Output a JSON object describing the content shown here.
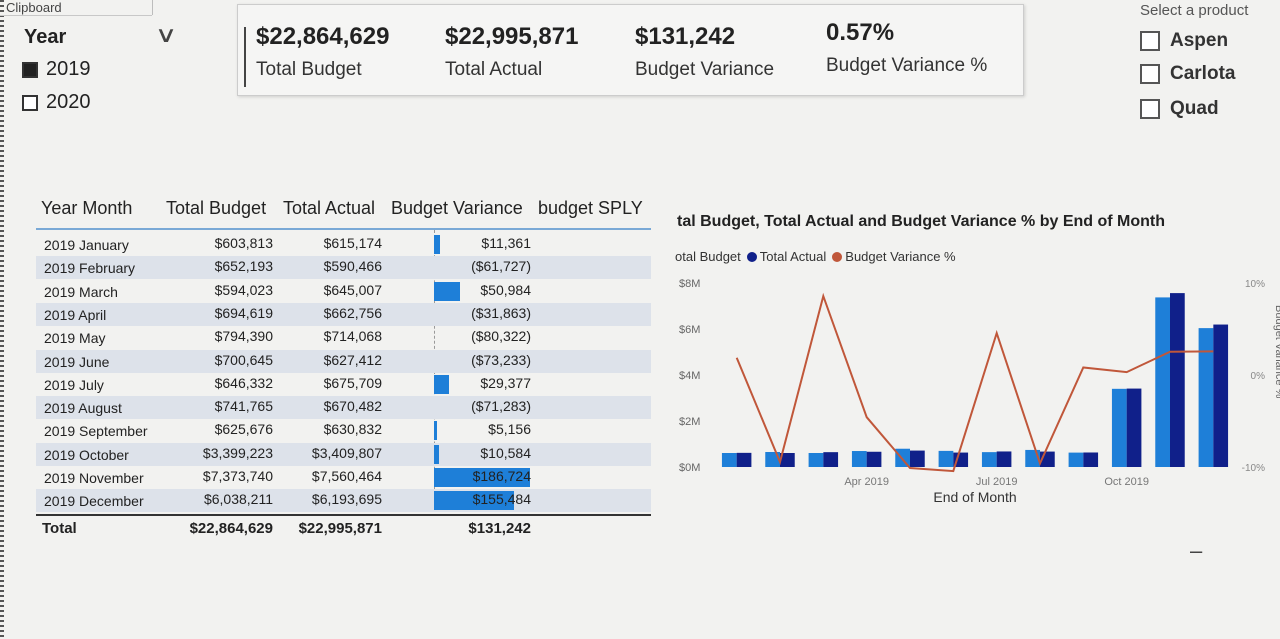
{
  "ribbon": {
    "clipboard": "Clipboard"
  },
  "year_slicer": {
    "title": "Year",
    "options": [
      {
        "label": "2019",
        "checked": true
      },
      {
        "label": "2020",
        "checked": false
      }
    ]
  },
  "kpis": [
    {
      "value": "$22,864,629",
      "label": "Total Budget"
    },
    {
      "value": "$22,995,871",
      "label": "Total Actual"
    },
    {
      "value": "$131,242",
      "label": "Budget Variance"
    },
    {
      "value": "0.57%",
      "label": "Budget Variance %"
    }
  ],
  "product_slicer": {
    "title": "Select a product",
    "options": [
      {
        "label": "Aspen",
        "checked": false
      },
      {
        "label": "Carlota",
        "checked": false
      },
      {
        "label": "Quad",
        "checked": false
      }
    ]
  },
  "table": {
    "headers": {
      "year_month": "Year  Month",
      "budget": "Total Budget",
      "actual": "Total Actual",
      "variance": "Budget Variance",
      "sply": "budget SPLY"
    },
    "rows": [
      {
        "month": "2019  January",
        "budget": "$603,813",
        "actual": "$615,174",
        "variance": "$11,361",
        "var_num": 11361
      },
      {
        "month": "2019  February",
        "budget": "$652,193",
        "actual": "$590,466",
        "variance": "($61,727)",
        "var_num": -61727
      },
      {
        "month": "2019  March",
        "budget": "$594,023",
        "actual": "$645,007",
        "variance": "$50,984",
        "var_num": 50984
      },
      {
        "month": "2019  April",
        "budget": "$694,619",
        "actual": "$662,756",
        "variance": "($31,863)",
        "var_num": -31863
      },
      {
        "month": "2019  May",
        "budget": "$794,390",
        "actual": "$714,068",
        "variance": "($80,322)",
        "var_num": -80322
      },
      {
        "month": "2019  June",
        "budget": "$700,645",
        "actual": "$627,412",
        "variance": "($73,233)",
        "var_num": -73233
      },
      {
        "month": "2019  July",
        "budget": "$646,332",
        "actual": "$675,709",
        "variance": "$29,377",
        "var_num": 29377
      },
      {
        "month": "2019  August",
        "budget": "$741,765",
        "actual": "$670,482",
        "variance": "($71,283)",
        "var_num": -71283
      },
      {
        "month": "2019  September",
        "budget": "$625,676",
        "actual": "$630,832",
        "variance": "$5,156",
        "var_num": 5156
      },
      {
        "month": "2019  October",
        "budget": "$3,399,223",
        "actual": "$3,409,807",
        "variance": "$10,584",
        "var_num": 10584
      },
      {
        "month": "2019  November",
        "budget": "$7,373,740",
        "actual": "$7,560,464",
        "variance": "$186,724",
        "var_num": 186724
      },
      {
        "month": "2019  December",
        "budget": "$6,038,211",
        "actual": "$6,193,695",
        "variance": "$155,484",
        "var_num": 155484
      }
    ],
    "total": {
      "label": "Total",
      "budget": "$22,864,629",
      "actual": "$22,995,871",
      "variance": "$131,242"
    }
  },
  "chart_data": {
    "type": "bar",
    "title": "tal Budget, Total Actual and Budget Variance % by End of Month",
    "xlabel": "End of Month",
    "ylabel_right": "Budget Variance %",
    "ylim": [
      0,
      8000000
    ],
    "y2lim": [
      -10,
      10
    ],
    "y_ticks": [
      "$0M",
      "$2M",
      "$4M",
      "$6M",
      "$8M"
    ],
    "y2_ticks": [
      "-10%",
      "0%",
      "10%"
    ],
    "x_ticks": [
      "Apr 2019",
      "Jul 2019",
      "Oct 2019"
    ],
    "legend": [
      "otal Budget",
      "Total Actual",
      "Budget Variance %"
    ],
    "colors": {
      "budget": "#1e7fd8",
      "actual": "#10208a",
      "variance": "#c0573a"
    },
    "categories": [
      "Jan 2019",
      "Feb 2019",
      "Mar 2019",
      "Apr 2019",
      "May 2019",
      "Jun 2019",
      "Jul 2019",
      "Aug 2019",
      "Sep 2019",
      "Oct 2019",
      "Nov 2019",
      "Dec 2019"
    ],
    "series": [
      {
        "name": "Total Budget",
        "values": [
          603813,
          652193,
          594023,
          694619,
          794390,
          700645,
          646332,
          741765,
          625676,
          3399223,
          7373740,
          6038211
        ]
      },
      {
        "name": "Total Actual",
        "values": [
          615174,
          590466,
          645007,
          662756,
          714068,
          627412,
          675709,
          670482,
          630832,
          3409807,
          7560464,
          6193695
        ]
      },
      {
        "name": "Budget Variance %",
        "axis": "right",
        "values": [
          1.88,
          -9.46,
          8.58,
          -4.59,
          -10.11,
          -10.45,
          4.55,
          -9.61,
          0.82,
          0.31,
          2.53,
          2.57
        ]
      }
    ]
  }
}
